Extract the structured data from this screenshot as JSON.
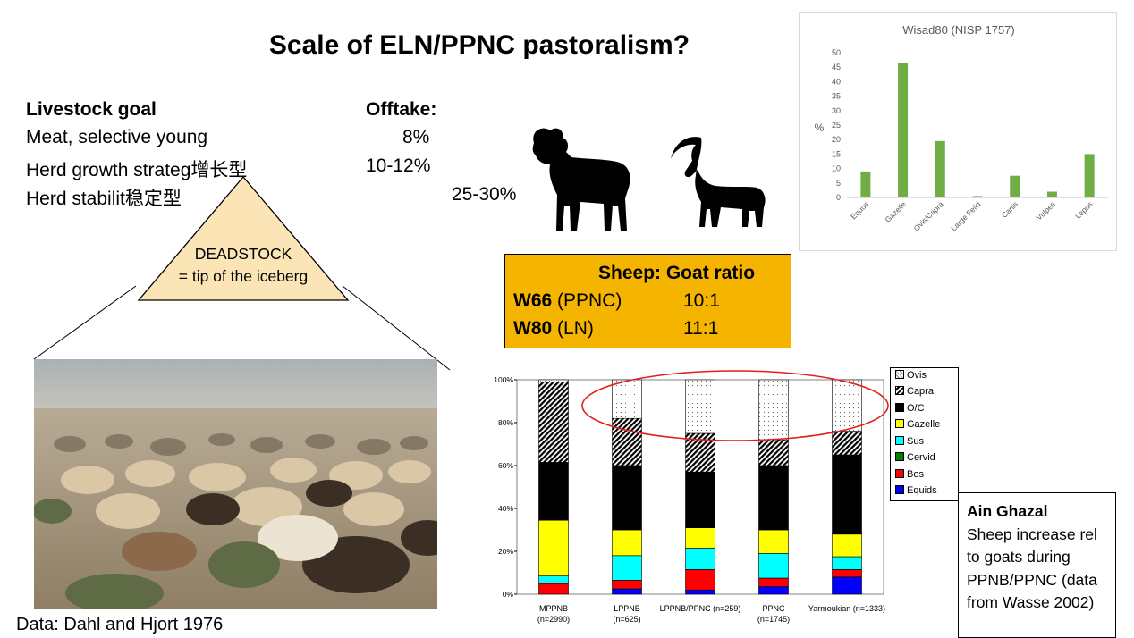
{
  "slide": {
    "title": "Scale of ELN/PPNC pastoralism?",
    "livestock": {
      "header_goal": "Livestock goal",
      "header_offtake": "Offtake:",
      "rows": [
        {
          "goal": "Meat, selective young",
          "offtake": "8%"
        },
        {
          "goal": "Herd growth strateg增长型",
          "offtake": "10-12%"
        },
        {
          "goal": "Herd stabilit稳定型",
          "offtake": "25-30%"
        }
      ]
    },
    "triangle": {
      "line1": "DEADSTOCK",
      "line2": "= tip of the iceberg"
    },
    "ratio_table": {
      "header": "Sheep: Goat ratio",
      "rows": [
        {
          "site": "W66",
          "period": " (PPNC)",
          "ratio": "10:1"
        },
        {
          "site": "W80",
          "period": " (LN)",
          "ratio": "11:1"
        }
      ]
    },
    "note": {
      "title": "Ain Ghazal",
      "text": "Sheep increase rel to goats during PPNB/PPNC (data from Wasse 2002)"
    },
    "source": "Data: Dahl and Hjort 1976",
    "icons": [
      "ram-silhouette-icon",
      "ibex-silhouette-icon"
    ],
    "colors": {
      "ratio_box": "#f5b400",
      "wisad_bar": "#70ad47",
      "highlight_ellipse": "#e02020"
    }
  },
  "chart_data": [
    {
      "type": "bar",
      "title": "Wisad80 (NISP 1757)",
      "ylabel": "%",
      "xlabel": "",
      "ylim": [
        0,
        50
      ],
      "yticks": [
        0,
        5,
        10,
        15,
        20,
        25,
        30,
        35,
        40,
        45,
        50
      ],
      "categories": [
        "Equus",
        "Gazelle",
        "Ovis/Capra",
        "Large Felid",
        "Canis",
        "Vulpes",
        "Lepus"
      ],
      "values": [
        9,
        46.5,
        19.5,
        0.5,
        7.5,
        2,
        15
      ],
      "grid": false,
      "legend": "none"
    },
    {
      "type": "bar",
      "stacked": true,
      "title": "",
      "ylim": [
        0,
        100
      ],
      "yticks": [
        "0%",
        "20%",
        "40%",
        "60%",
        "80%",
        "100%"
      ],
      "categories": [
        "MPPNB (n=2990)",
        "LPPNB (n=625)",
        "LPPNB/PPNC (n=259)",
        "PPNC (n=1745)",
        "Yarmoukian (n=1333)"
      ],
      "legend": "right",
      "series": [
        {
          "name": "Equids",
          "color": "#0000ff",
          "values": [
            0,
            2.5,
            2,
            3.5,
            8
          ]
        },
        {
          "name": "Bos",
          "color": "#ff0000",
          "values": [
            5,
            4,
            9.5,
            4,
            3.5
          ]
        },
        {
          "name": "Cervid",
          "color": "#008000",
          "values": [
            0,
            0,
            0,
            0,
            0
          ]
        },
        {
          "name": "Sus",
          "color": "#00ffff",
          "values": [
            3.5,
            11.5,
            10,
            11.5,
            6
          ]
        },
        {
          "name": "Gazelle",
          "color": "#ffff00",
          "values": [
            26,
            12,
            9.5,
            11,
            10.5
          ]
        },
        {
          "name": "O/C",
          "color": "#000000",
          "values": [
            27,
            30,
            26,
            30,
            37
          ]
        },
        {
          "name": "Capra",
          "color": "#000000",
          "values": [
            37.5,
            22,
            18,
            12,
            11
          ]
        },
        {
          "name": "Ovis",
          "color": "#ffffff",
          "values": [
            1,
            18,
            25,
            28,
            24
          ]
        }
      ]
    }
  ]
}
